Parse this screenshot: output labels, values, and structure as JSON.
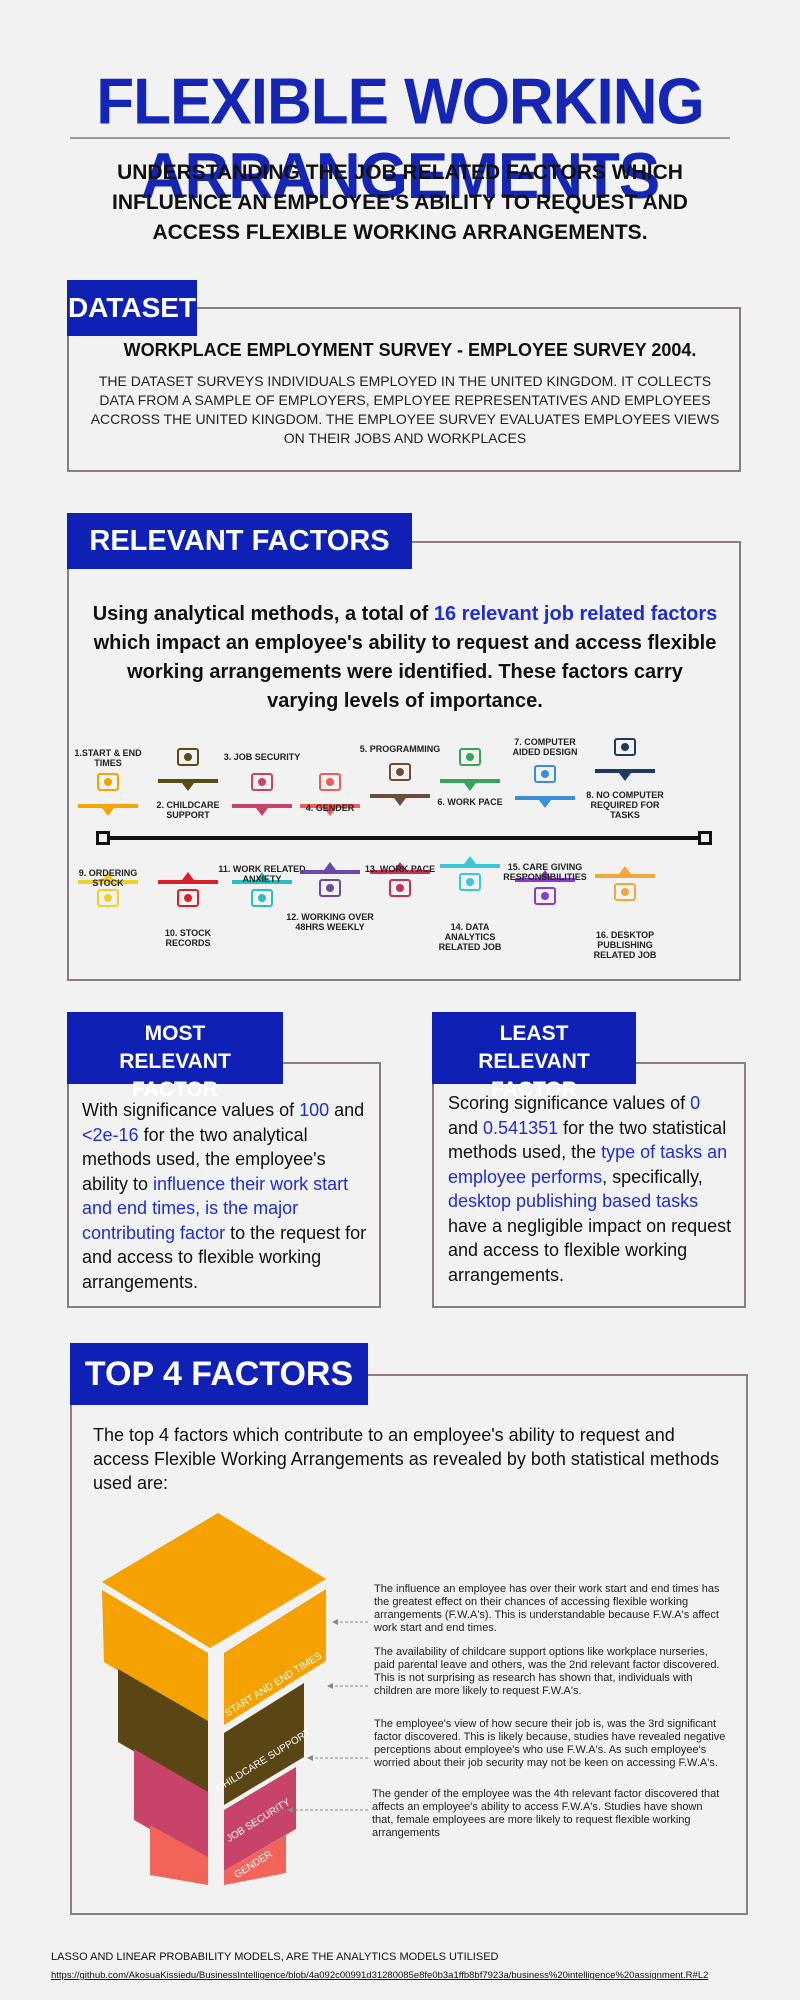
{
  "header": {
    "title": "FLEXIBLE WORKING ARRANGEMENTS",
    "subtitle": "UNDERSTANDING THE JOB RELATED FACTORS WHICH INFLUENCE AN EMPLOYEE'S ABILITY TO REQUEST AND ACCESS FLEXIBLE WORKING ARRANGEMENTS."
  },
  "dataset": {
    "tab": "DATASET",
    "heading": "WORKPLACE EMPLOYMENT SURVEY - EMPLOYEE SURVEY 2004.",
    "body": "THE DATASET SURVEYS INDIVIDUALS EMPLOYED IN THE  UNITED KINGDOM. IT COLLECTS DATA FROM A SAMPLE OF EMPLOYERS, EMPLOYEE REPRESENTATIVES AND EMPLOYEES ACCROSS THE UNITED KINGDOM. THE EMPLOYEE SURVEY EVALUATES  EMPLOYEES VIEWS ON THEIR JOBS AND WORKPLACES"
  },
  "relevant": {
    "tab": "RELEVANT FACTORS",
    "intro_a": "Using analytical methods, a total of ",
    "intro_b": "16 relevant job related factors",
    "intro_c": " which impact an employee's ability to request and access flexible working arrangements were identified. These factors carry varying levels of importance.",
    "top_factors": [
      "1.START & END TIMES",
      "2. CHILDCARE  SUPPORT",
      "3. JOB SECURITY",
      "4. GENDER",
      "5. PROGRAMMING",
      "6. WORK PACE",
      "7. COMPUTER AIDED DESIGN",
      "8. NO COMPUTER REQUIRED FOR TASKS"
    ],
    "bottom_factors": [
      "9. ORDERING STOCK",
      "10. STOCK RECORDS",
      "11. WORK RELATED ANXIETY",
      "12. WORKING OVER 48HRS WEEKLY",
      "13. WORK PACE",
      "14. DATA ANALYTICS RELATED JOB",
      "15. CARE GIVING RESPONSIBILITIES",
      "16. DESKTOP PUBLISHING RELATED JOB"
    ],
    "colors": [
      "#f2a500",
      "#5a4a14",
      "#c8436a",
      "#ef5a5a",
      "#6b4d3a",
      "#3aa35a",
      "#3a8fd8",
      "#1f3a5f",
      "#f2d02a",
      "#d81f2a",
      "#2ac0c0",
      "#6a4aa0",
      "#c8305a",
      "#3ac8d8",
      "#8a3ad0",
      "#f2a83a"
    ]
  },
  "most": {
    "tab": "MOST RELEVANT FACTOR",
    "t1": "With significance values of ",
    "v1": "100",
    "t2": " and ",
    "v2": "<2e-16",
    "t3": " for the two analytical methods used, the employee's ability to ",
    "v3": "influence their work start and end times, is the major contributing factor",
    "t4": " to the request for and access to flexible working arrangements."
  },
  "least": {
    "tab": "LEAST RELEVANT FACTOR",
    "t1": "Scoring significance values of ",
    "v1": "0",
    "t2": " and ",
    "v2": "0.541351",
    "t3": " for the two statistical methods used, the ",
    "v3": "type of tasks an employee performs",
    "t4": ", specifically, ",
    "v4": "desktop publishing based tasks",
    "t5": " have a negligible impact on request and access to flexible working arrangements."
  },
  "top4": {
    "tab": "TOP 4 FACTORS",
    "intro": "The top 4 factors which contribute to an employee's ability to request and access Flexible Working Arrangements as revealed by both statistical methods used are:",
    "layers": [
      "START AND END TIMES",
      "CHILDCARE SUPPORT",
      "JOB SECURITY",
      "GENDER"
    ],
    "descriptions": [
      "The influence an employee has over their work start and end times has the greatest effect on their chances of accessing flexible working arrangements (F.W.A's). This is understandable because F.W.A's affect work start and end times.",
      "The availability of childcare support options like workplace nurseries, paid parental leave and others, was the 2nd relevant factor discovered. This is not surprising as research has shown that, individuals with children are more likely to request F.W.A's.",
      "The employee's view of how secure their job is, was the 3rd significant factor discovered. This is likely because, studies have revealed negative perceptions about employee's who use F.W.A's. As such employee's worried about their job security may not be keen on accessing F.W.A's.",
      "The gender of the employee was the 4th relevant factor discovered that affects an employee's ability to access F.W.A's. Studies have shown that, female employees are more likely to request flexible working arrangements"
    ]
  },
  "footer": {
    "note": "LASSO AND LINEAR PROBABILITY MODELS, ARE THE ANALYTICS MODELS UTILISED",
    "link": "https://github.com/AkosuaKissiedu/BusinessIntelligence/blob/4a092c00991d31280085e8fe0b3a1ffb8bf7923a/business%20intelligence%20assignment.R#L2"
  }
}
